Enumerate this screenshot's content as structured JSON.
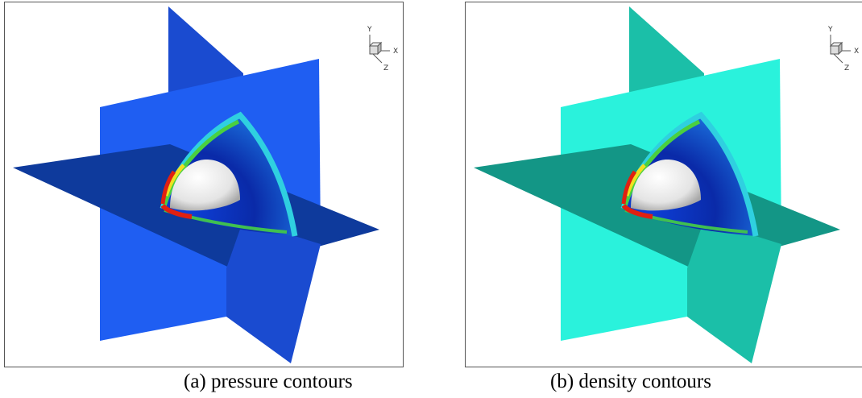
{
  "panels": [
    {
      "caption": "(a) pressure contours",
      "axes": {
        "y": "Y",
        "x": "X",
        "z": "Z"
      }
    },
    {
      "caption": "(b) density contours",
      "axes": {
        "y": "Y",
        "x": "X",
        "z": "Z"
      }
    }
  ]
}
